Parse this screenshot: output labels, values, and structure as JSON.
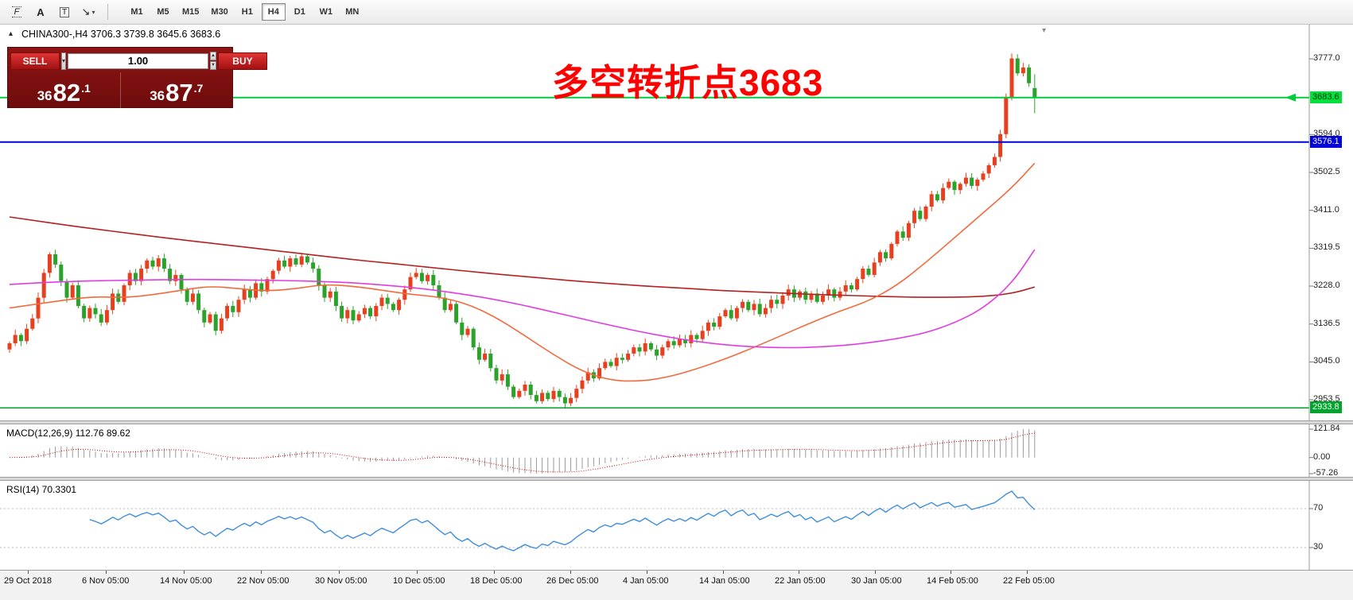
{
  "toolbar": {
    "tools": [
      {
        "name": "fibonacci",
        "glyph": "F"
      },
      {
        "name": "text",
        "glyph": "A"
      },
      {
        "name": "text-label",
        "glyph": "T"
      },
      {
        "name": "arrow-objects",
        "glyph": "↘",
        "dropdown": "▾"
      }
    ],
    "timeframes": [
      "M1",
      "M5",
      "M15",
      "M30",
      "H1",
      "H4",
      "D1",
      "W1",
      "MN"
    ],
    "active_timeframe": "H4"
  },
  "chart_header": {
    "symbol_info": "CHINA300-,H4 3706.3 3739.8 3645.6 3683.6",
    "collapse_glyph": "▴",
    "shift_marker_glyph": "▾"
  },
  "trade_panel": {
    "sell_label": "SELL",
    "buy_label": "BUY",
    "volume": "1.00",
    "volume_dropdown_glyph": "▾",
    "sell_price": {
      "prefix": "36",
      "big": "82",
      "pip": ".1"
    },
    "buy_price": {
      "prefix": "36",
      "big": "87",
      "pip": ".7"
    }
  },
  "annotation": {
    "text": "多空转折点3683",
    "color": "#ff0000"
  },
  "price_axis": {
    "labels": [
      "3777.0",
      "3594.0",
      "3502.5",
      "3411.0",
      "3319.5",
      "3228.0",
      "3136.5",
      "3045.0",
      "2953.5"
    ],
    "tags": [
      {
        "value": "3683.6",
        "bg": "#00e13c",
        "fg": "#00320c"
      },
      {
        "value": "3576.1",
        "bg": "#0000dc",
        "fg": "#ffffff"
      },
      {
        "value": "2933.8",
        "bg": "#00a52c",
        "fg": "#ffffff"
      }
    ]
  },
  "hlines": [
    {
      "price": 3683.6,
      "color": "#00cd3c",
      "width": 2,
      "arrow": true
    },
    {
      "price": 3576.1,
      "color": "#0000dc",
      "width": 2
    },
    {
      "price": 2933.8,
      "color": "#00a02c",
      "width": 1.5
    }
  ],
  "macd_panel": {
    "label": "MACD(12,26,9) 112.76 89.62",
    "axis_labels": [
      "121.84",
      "0.00",
      "-57.26"
    ],
    "params": {
      "fast": 12,
      "slow": 26,
      "signal": 9
    },
    "histogram_color": "#9a9a9a",
    "signal_color": "#d00000"
  },
  "rsi_panel": {
    "label": "RSI(14) 70.3301",
    "period": 14,
    "levels": [
      "70",
      "30"
    ],
    "line_color": "#3f8ede"
  },
  "time_axis": {
    "labels": [
      "29 Oct 2018",
      "6 Nov 05:00",
      "14 Nov 05:00",
      "22 Nov 05:00",
      "30 Nov 05:00",
      "10 Dec 05:00",
      "18 Dec 05:00",
      "26 Dec 05:00",
      "4 Jan 05:00",
      "14 Jan 05:00",
      "22 Jan 05:00",
      "30 Jan 05:00",
      "14 Feb 05:00",
      "22 Feb 05:00"
    ]
  },
  "chart_data": {
    "type": "candlestick",
    "symbol": "CHINA300-",
    "timeframe": "H4",
    "title": "CHINA300- H4 candlestick chart with MACD(12,26,9) and RSI(14)",
    "up_color": "#e8401f",
    "down_color": "#2ba32b",
    "ohlc_last_bar": {
      "open": 3706.3,
      "high": 3739.8,
      "low": 3645.6,
      "close": 3683.6
    },
    "first_open": 3075,
    "y_axis_range": [
      2933.8,
      3795
    ],
    "closes": [
      3090,
      3110,
      3095,
      3125,
      3150,
      3200,
      3260,
      3305,
      3280,
      3240,
      3200,
      3230,
      3180,
      3150,
      3175,
      3160,
      3140,
      3170,
      3210,
      3190,
      3230,
      3260,
      3240,
      3270,
      3290,
      3275,
      3295,
      3270,
      3240,
      3255,
      3220,
      3190,
      3210,
      3170,
      3140,
      3160,
      3120,
      3150,
      3180,
      3165,
      3195,
      3220,
      3200,
      3235,
      3215,
      3245,
      3265,
      3290,
      3275,
      3295,
      3280,
      3300,
      3285,
      3270,
      3230,
      3200,
      3215,
      3180,
      3150,
      3170,
      3145,
      3160,
      3175,
      3155,
      3180,
      3200,
      3185,
      3170,
      3195,
      3220,
      3250,
      3260,
      3240,
      3255,
      3230,
      3200,
      3170,
      3185,
      3140,
      3110,
      3125,
      3080,
      3050,
      3065,
      3030,
      3000,
      3015,
      2985,
      2960,
      2975,
      2990,
      2965,
      2950,
      2970,
      2955,
      2975,
      2960,
      2945,
      2958,
      2980,
      3000,
      3020,
      3005,
      3030,
      3045,
      3035,
      3055,
      3050,
      3065,
      3080,
      3070,
      3090,
      3075,
      3060,
      3080,
      3095,
      3085,
      3100,
      3090,
      3110,
      3100,
      3120,
      3140,
      3130,
      3155,
      3170,
      3150,
      3175,
      3190,
      3170,
      3185,
      3160,
      3175,
      3195,
      3185,
      3205,
      3220,
      3200,
      3215,
      3195,
      3210,
      3190,
      3205,
      3220,
      3200,
      3215,
      3230,
      3220,
      3245,
      3270,
      3255,
      3285,
      3310,
      3295,
      3330,
      3360,
      3345,
      3380,
      3410,
      3390,
      3420,
      3450,
      3435,
      3465,
      3480,
      3460,
      3475,
      3490,
      3470,
      3485,
      3500,
      3520,
      3540,
      3595,
      3683,
      3778,
      3742,
      3756,
      3718,
      3683.6
    ],
    "bar_overrides": [
      {
        "index": 97,
        "low": 2934
      },
      {
        "index": 175,
        "high": 3790
      }
    ],
    "ma_lines": [
      {
        "name": "ma-slow-darkred",
        "color": "#b22222",
        "sample_step": 5,
        "values": [
          3395,
          3385,
          3375,
          3366,
          3357,
          3348,
          3340,
          3332,
          3324,
          3316,
          3308,
          3300,
          3292,
          3285,
          3278,
          3271,
          3264,
          3257,
          3251,
          3245,
          3239,
          3234,
          3229,
          3225,
          3221,
          3217,
          3214,
          3211,
          3208,
          3206,
          3204,
          3202,
          3201,
          3201,
          3203,
          3210,
          3226
        ]
      },
      {
        "name": "ma-fast-orange",
        "color": "#f26a3d",
        "sample_step": 5,
        "values": [
          3175,
          3185,
          3195,
          3203,
          3200,
          3207,
          3218,
          3228,
          3222,
          3216,
          3222,
          3232,
          3228,
          3218,
          3208,
          3202,
          3185,
          3152,
          3108,
          3062,
          3022,
          3000,
          2998,
          3008,
          3028,
          3052,
          3080,
          3110,
          3140,
          3168,
          3192,
          3230,
          3285,
          3345,
          3405,
          3465,
          3525
        ]
      },
      {
        "name": "ma-mid-magenta",
        "color": "#e03ce0",
        "sample_step": 5,
        "values": [
          3232,
          3236,
          3239,
          3241,
          3242,
          3243,
          3244,
          3244,
          3243,
          3242,
          3241,
          3239,
          3236,
          3231,
          3225,
          3217,
          3207,
          3195,
          3181,
          3165,
          3149,
          3133,
          3118,
          3105,
          3094,
          3086,
          3081,
          3079,
          3080,
          3084,
          3091,
          3101,
          3115,
          3139,
          3174,
          3234,
          3316
        ]
      }
    ]
  }
}
